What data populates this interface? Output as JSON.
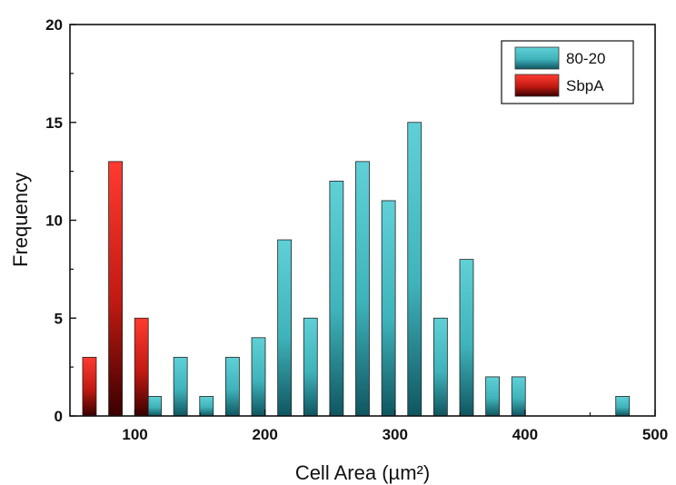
{
  "chart_data": {
    "type": "bar",
    "title": "",
    "xlabel": "Cell Area (µm²)",
    "ylabel": "Frequency",
    "xlim": [
      50,
      500
    ],
    "ylim": [
      0,
      20
    ],
    "x_ticks": [
      100,
      200,
      300,
      400,
      500
    ],
    "y_ticks": [
      0,
      5,
      10,
      15,
      20
    ],
    "grid": false,
    "legend_position": "top-right",
    "colors": {
      "80-20_top": "#5fd0d6",
      "80-20_bottom": "#0f5660",
      "SbpA_top": "#ff3b30",
      "SbpA_bottom": "#3a0000"
    },
    "series": [
      {
        "name": "80-20",
        "x": [
          115,
          135,
          155,
          175,
          195,
          215,
          235,
          255,
          275,
          295,
          315,
          335,
          355,
          375,
          395,
          475
        ],
        "values": [
          1,
          3,
          1,
          3,
          4,
          9,
          5,
          12,
          13,
          11,
          15,
          5,
          8,
          2,
          2,
          1
        ]
      },
      {
        "name": "SbpA",
        "x": [
          65,
          85,
          105
        ],
        "values": [
          3,
          13,
          5
        ]
      }
    ]
  }
}
